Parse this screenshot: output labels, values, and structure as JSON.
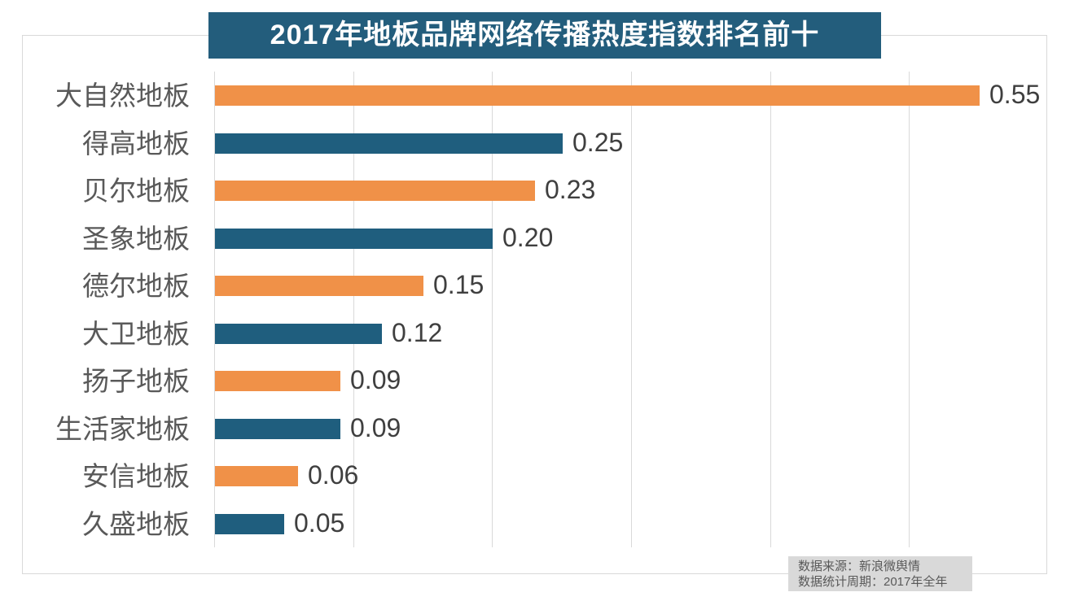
{
  "title": "2017年地板品牌网络传播热度指数排名前十",
  "source_note": {
    "line1": "数据来源：新浪微舆情",
    "line2": "数据统计周期：2017年全年"
  },
  "colors": {
    "orange_bar": "#F09148",
    "teal_bar": "#1F5E7E",
    "title_bg": "#235D7C",
    "title_text": "#FFFFFF",
    "grid_line": "#D9D9D9",
    "category_text": "#595959",
    "value_text": "#3F3F3F",
    "source_bg": "#D9D9D9",
    "source_text": "#595959"
  },
  "chart_data": {
    "type": "bar",
    "orientation": "horizontal",
    "title": "2017年地板品牌网络传播热度指数排名前十",
    "categories": [
      "大自然地板",
      "得高地板",
      "贝尔地板",
      "圣象地板",
      "德尔地板",
      "大卫地板",
      "扬子地板",
      "生活家地板",
      "安信地板",
      "久盛地板"
    ],
    "values": [
      0.55,
      0.25,
      0.23,
      0.2,
      0.15,
      0.12,
      0.09,
      0.09,
      0.06,
      0.05
    ],
    "value_labels": [
      "0.55",
      "0.25",
      "0.23",
      "0.20",
      "0.15",
      "0.12",
      "0.09",
      "0.09",
      "0.06",
      "0.05"
    ],
    "bar_color_pattern": [
      "orange_bar",
      "teal_bar"
    ],
    "xlabel": "",
    "ylabel": "",
    "xlim": [
      0,
      0.6
    ],
    "grid_step": 0.1,
    "grid": "on",
    "legend": "none",
    "annotations": [
      "数据来源：新浪微舆情",
      "数据统计周期：2017年全年"
    ]
  }
}
